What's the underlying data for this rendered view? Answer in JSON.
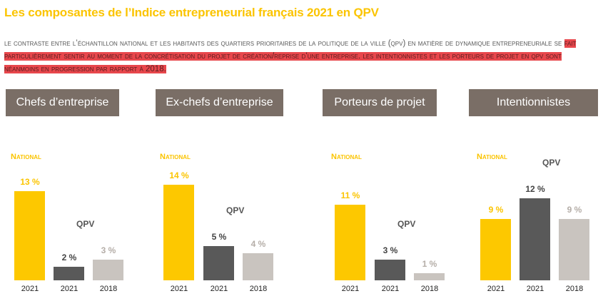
{
  "title": "Les composantes de l’Indice entrepreneurial français 2021 en QPV",
  "intro": {
    "part1": "Le contraste entre l’échantillon national et les habitants des quartiers prioritaires de la politique de la ville (QPV) en matière de dynamique entrepreneuriale se ",
    "highlight": "fait particulièrement sentir au moment de la concrétisation du projet de création/reprise d’une entreprise.  Les intentionnistes et les porteurs de projet en QPV sont néanmoins en progression par rapport à 2018."
  },
  "colors": {
    "national": "#fdc800",
    "qpv_2021": "#595959",
    "qpv_2018": "#c9c4bf",
    "header": "#7a6e66",
    "highlight": "#e8474c"
  },
  "labels": {
    "national": "National",
    "qpv": "QPV"
  },
  "chart_data": [
    {
      "type": "bar",
      "title": "Chefs d’entreprise",
      "categories": [
        "2021",
        "2021",
        "2018"
      ],
      "groups": [
        "National",
        "QPV",
        "QPV"
      ],
      "values": [
        13,
        2,
        3
      ],
      "value_labels": [
        "13 %",
        "2 %",
        "3 %"
      ]
    },
    {
      "type": "bar",
      "title": "Ex-chefs d’entreprise",
      "categories": [
        "2021",
        "2021",
        "2018"
      ],
      "groups": [
        "National",
        "QPV",
        "QPV"
      ],
      "values": [
        14,
        5,
        4
      ],
      "value_labels": [
        "14 %",
        "5 %",
        "4 %"
      ]
    },
    {
      "type": "bar",
      "title": "Porteurs de projet",
      "categories": [
        "2021",
        "2021",
        "2018"
      ],
      "groups": [
        "National",
        "QPV",
        "QPV"
      ],
      "values": [
        11,
        3,
        1
      ],
      "value_labels": [
        "11 %",
        "3 %",
        "1 %"
      ]
    },
    {
      "type": "bar",
      "title": "Intentionnistes",
      "categories": [
        "2021",
        "2021",
        "2018"
      ],
      "groups": [
        "National",
        "QPV",
        "QPV"
      ],
      "values": [
        9,
        12,
        9
      ],
      "value_labels": [
        "9 %",
        "12 %",
        "9 %"
      ]
    }
  ]
}
